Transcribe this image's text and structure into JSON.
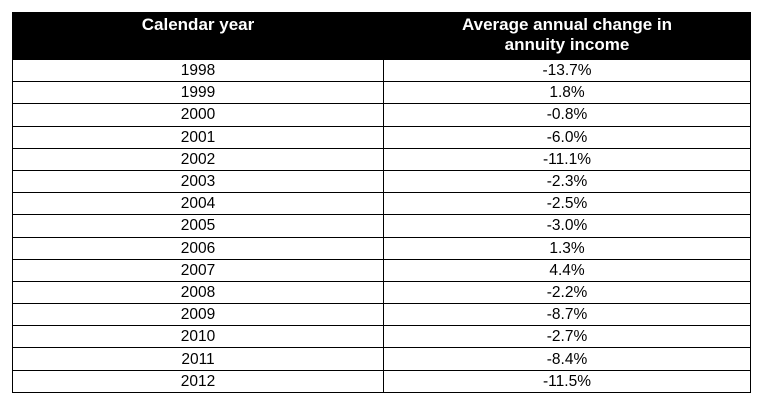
{
  "chart_data": {
    "type": "table",
    "title": "",
    "columns": [
      "Calendar year",
      "Average annual change in annuity income"
    ],
    "rows": [
      [
        "1998",
        "-13.7%"
      ],
      [
        "1999",
        "1.8%"
      ],
      [
        "2000",
        "-0.8%"
      ],
      [
        "2001",
        "-6.0%"
      ],
      [
        "2002",
        "-11.1%"
      ],
      [
        "2003",
        "-2.3%"
      ],
      [
        "2004",
        "-2.5%"
      ],
      [
        "2005",
        "-3.0%"
      ],
      [
        "2006",
        "1.3%"
      ],
      [
        "2007",
        "4.4%"
      ],
      [
        "2008",
        "-2.2%"
      ],
      [
        "2009",
        "-8.7%"
      ],
      [
        "2010",
        "-2.7%"
      ],
      [
        "2011",
        "-8.4%"
      ],
      [
        "2012",
        "-11.5%"
      ]
    ]
  },
  "table": {
    "header": {
      "col1": "Calendar year",
      "col2_line1": "Average annual change in",
      "col2_line2": "annuity income"
    },
    "rows": [
      {
        "year": "1998",
        "change": "-13.7%"
      },
      {
        "year": "1999",
        "change": "1.8%"
      },
      {
        "year": "2000",
        "change": "-0.8%"
      },
      {
        "year": "2001",
        "change": "-6.0%"
      },
      {
        "year": "2002",
        "change": "-11.1%"
      },
      {
        "year": "2003",
        "change": "-2.3%"
      },
      {
        "year": "2004",
        "change": "-2.5%"
      },
      {
        "year": "2005",
        "change": "-3.0%"
      },
      {
        "year": "2006",
        "change": "1.3%"
      },
      {
        "year": "2007",
        "change": "4.4%"
      },
      {
        "year": "2008",
        "change": "-2.2%"
      },
      {
        "year": "2009",
        "change": "-8.7%"
      },
      {
        "year": "2010",
        "change": "-2.7%"
      },
      {
        "year": "2011",
        "change": "-8.4%"
      },
      {
        "year": "2012",
        "change": "-11.5%"
      }
    ]
  },
  "colors": {
    "header_bg": "#000000",
    "header_text": "#ffffff",
    "body_text": "#000000",
    "border": "#000000",
    "background": "#ffffff"
  }
}
